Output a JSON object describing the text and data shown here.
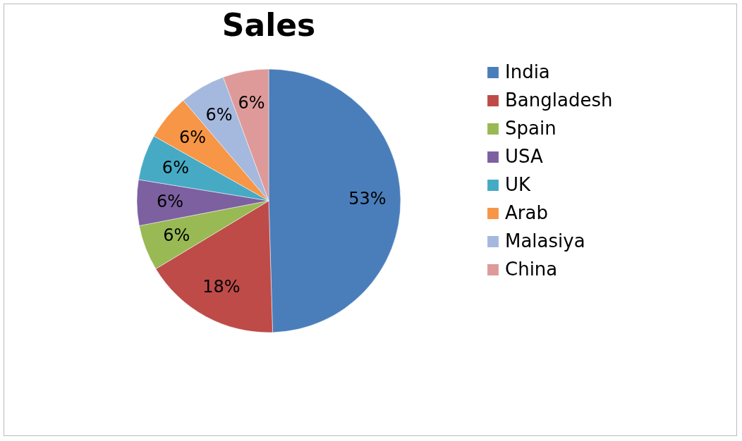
{
  "chart_data": {
    "type": "pie",
    "title": "Sales",
    "categories": [
      "India",
      "Bangladesh",
      "Spain",
      "USA",
      "UK",
      "Arab",
      "Malasiya",
      "China"
    ],
    "values": [
      53,
      18,
      6,
      6,
      6,
      6,
      6,
      6
    ],
    "value_labels": [
      "53%",
      "18%",
      "6%",
      "6%",
      "6%",
      "6%",
      "6%",
      "6%"
    ],
    "colors": [
      "#4a7ebb",
      "#be4b48",
      "#98b954",
      "#7d60a0",
      "#46aac5",
      "#f79646",
      "#a5b8de",
      "#dd9a99"
    ],
    "legend": "right"
  }
}
